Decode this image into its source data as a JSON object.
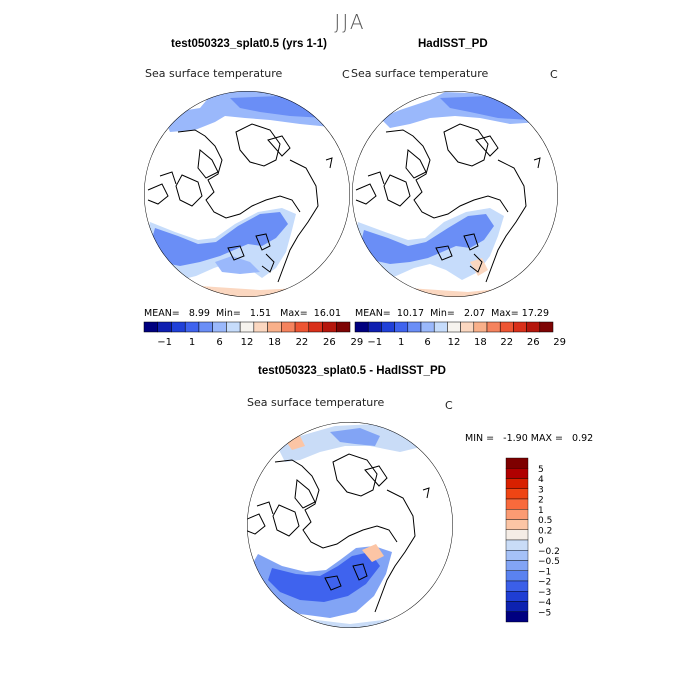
{
  "season": "JJA",
  "panels": [
    {
      "title": "test050323_splat0.5 (yrs 1-1)",
      "variable": "Sea surface temperature",
      "unit": "C",
      "stats": {
        "mean_label": "MEAN=",
        "mean": "8.99",
        "min_label": "Min=",
        "min": "1.51",
        "max_label": "Max=",
        "max": "16.01"
      }
    },
    {
      "title": "HadISST_PD",
      "variable": "Sea surface temperature",
      "unit": "C",
      "stats": {
        "mean_label": "MEAN=",
        "mean": "10.17",
        "min_label": "Min=",
        "min": "2.07",
        "max_label": "Max=",
        "max": "17.29"
      }
    },
    {
      "title": "test050323_splat0.5 - HadISST_PD",
      "variable": "Sea surface temperature",
      "unit": "C",
      "stats": {
        "min_label": "MIN =",
        "min": "-1.90",
        "max_label": "MAX =",
        "max": "0.92"
      }
    }
  ],
  "colorbar_abs": {
    "colors": [
      "#00007f",
      "#0f1fb0",
      "#2040d8",
      "#3f63ee",
      "#6a8ef6",
      "#9ab8fb",
      "#c6dcfb",
      "#f6f3ee",
      "#fbd7c0",
      "#f9b08a",
      "#f5835e",
      "#ed5533",
      "#d9301a",
      "#b5160c",
      "#7e0404"
    ],
    "labels": [
      "-1",
      "1",
      "6",
      "12",
      "18",
      "22",
      "26",
      "29"
    ]
  },
  "colorbar_diff": {
    "colors": [
      "#7e0000",
      "#b00000",
      "#d82000",
      "#ef4514",
      "#f86a3c",
      "#fb9b73",
      "#fcc5a5",
      "#f5ede6",
      "#c9dcf7",
      "#a5c1f7",
      "#82a4f5",
      "#5a82f0",
      "#3b5fe8",
      "#1f3ed4",
      "#0d22b0",
      "#000080"
    ],
    "labels": [
      "5",
      "4",
      "3",
      "2",
      "1",
      "0.5",
      "0.2",
      "0",
      "-0.2",
      "-0.5",
      "-1",
      "-2",
      "-3",
      "-4",
      "-5"
    ]
  },
  "fill_colors": {
    "ocean_light": "#c6dcfb",
    "ocean_mid": "#9ab8fb",
    "ocean_main": "#6a8ef6",
    "warm_light": "#fbd7c0",
    "neutral": "#f6f3ee",
    "diff_neg": "#3f63ee",
    "diff_neg_light": "#82a4f5",
    "diff_neg_pale": "#c9dcf7",
    "diff_pos": "#fcc5a5"
  }
}
